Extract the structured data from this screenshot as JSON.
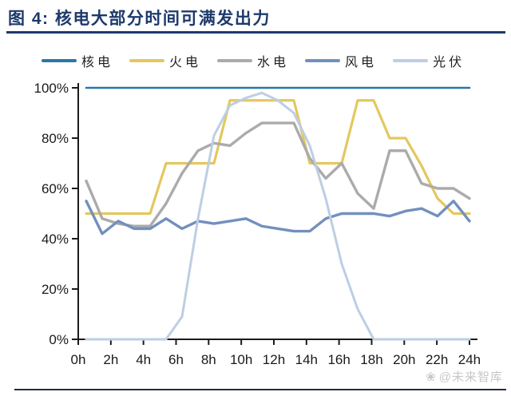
{
  "header": {
    "title": "图 4: 核电大部分时间可满发出力"
  },
  "footer": {
    "watermark": "@未来智库",
    "logo_icon": "flower-logo"
  },
  "colors": {
    "title_navy": "#1c3a6b",
    "axis": "#1a1a1a",
    "tick_text": "#1a1a1a",
    "watermark_gray": "#c7c7c7",
    "nuclear": "#2878a5",
    "thermal": "#e3c85f",
    "hydro": "#ababab",
    "wind": "#7290bd",
    "solar": "#bdcee4"
  },
  "chart_data": {
    "type": "line",
    "title": "核电大部分时间可满发出力",
    "xlabel": "",
    "ylabel": "",
    "x_unit": "hour",
    "x": [
      0,
      1,
      2,
      3,
      4,
      5,
      6,
      7,
      8,
      9,
      10,
      11,
      12,
      13,
      14,
      15,
      16,
      17,
      18,
      19,
      20,
      21,
      22,
      23,
      24
    ],
    "x_tick_labels": [
      "0h",
      "2h",
      "4h",
      "6h",
      "8h",
      "10h",
      "12h",
      "14h",
      "16h",
      "18h",
      "20h",
      "22h",
      "24h"
    ],
    "y_ticks": [
      0,
      20,
      40,
      60,
      80,
      100
    ],
    "y_tick_labels": [
      "0%",
      "20%",
      "40%",
      "60%",
      "80%",
      "100%"
    ],
    "ylim": [
      0,
      100
    ],
    "grid": false,
    "legend_position": "top",
    "series": [
      {
        "name": "核电",
        "color": "#2878a5",
        "values": [
          100,
          100,
          100,
          100,
          100,
          100,
          100,
          100,
          100,
          100,
          100,
          100,
          100,
          100,
          100,
          100,
          100,
          100,
          100,
          100,
          100,
          100,
          100,
          100,
          100
        ]
      },
      {
        "name": "火电",
        "color": "#e3c85f",
        "values": [
          50,
          50,
          50,
          50,
          50,
          70,
          70,
          70,
          70,
          95,
          95,
          95,
          95,
          95,
          70,
          70,
          70,
          95,
          95,
          80,
          80,
          69,
          56,
          50,
          50
        ]
      },
      {
        "name": "水电",
        "color": "#ababab",
        "values": [
          63,
          48,
          46,
          45,
          45,
          54,
          66,
          75,
          78,
          77,
          82,
          86,
          86,
          86,
          72,
          64,
          70,
          58,
          52,
          75,
          75,
          62,
          60,
          60,
          56
        ]
      },
      {
        "name": "风电",
        "color": "#7290bd",
        "values": [
          55,
          42,
          47,
          44,
          44,
          48,
          44,
          47,
          46,
          47,
          48,
          45,
          44,
          43,
          43,
          48,
          50,
          50,
          50,
          49,
          51,
          52,
          49,
          55,
          47
        ]
      },
      {
        "name": "光伏",
        "color": "#bdcee4",
        "values": [
          0,
          0,
          0,
          0,
          0,
          0,
          9,
          48,
          81,
          93,
          96,
          98,
          95,
          90,
          77,
          56,
          30,
          12,
          0,
          0,
          0,
          0,
          0,
          0,
          0
        ]
      }
    ]
  }
}
